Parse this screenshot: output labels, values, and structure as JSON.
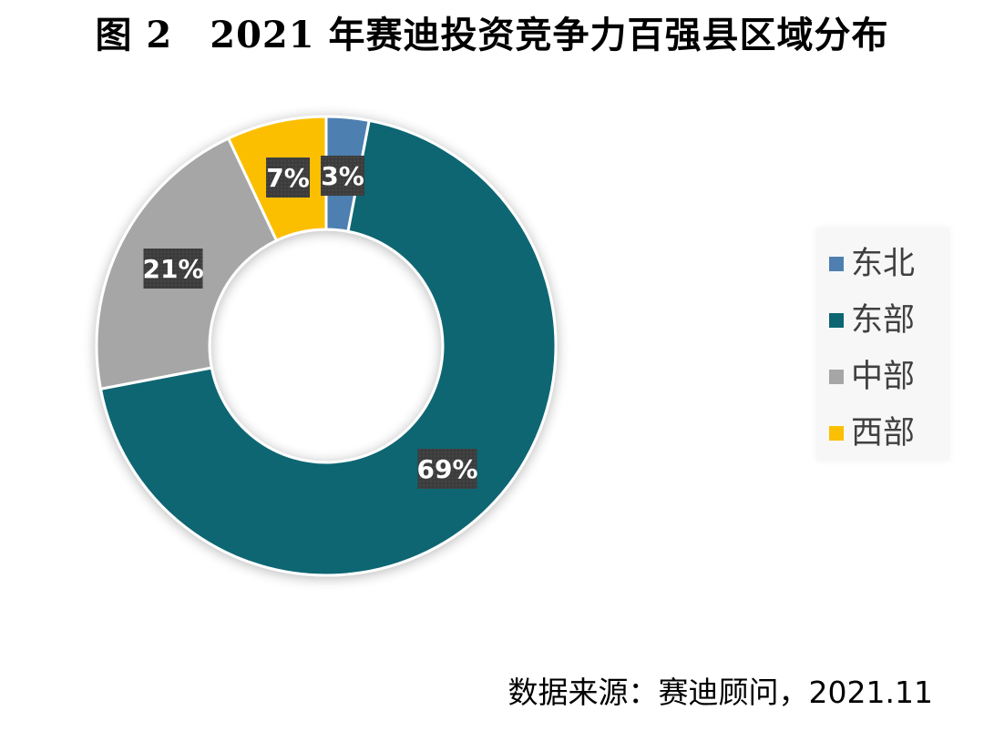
{
  "title": "图 2　2021 年赛迪投资竞争力百强县区域分布",
  "source": "数据来源：赛迪顾问，2021.11",
  "chart_data": {
    "type": "pie",
    "variant": "donut",
    "categories": [
      "东北",
      "东部",
      "中部",
      "西部"
    ],
    "values": [
      3,
      69,
      21,
      7
    ],
    "data_labels": [
      "3%",
      "69%",
      "21%",
      "7%"
    ],
    "colors": [
      "#4e7fb0",
      "#0d6672",
      "#a6a6a6",
      "#fbbf04"
    ],
    "legend_position": "right"
  }
}
